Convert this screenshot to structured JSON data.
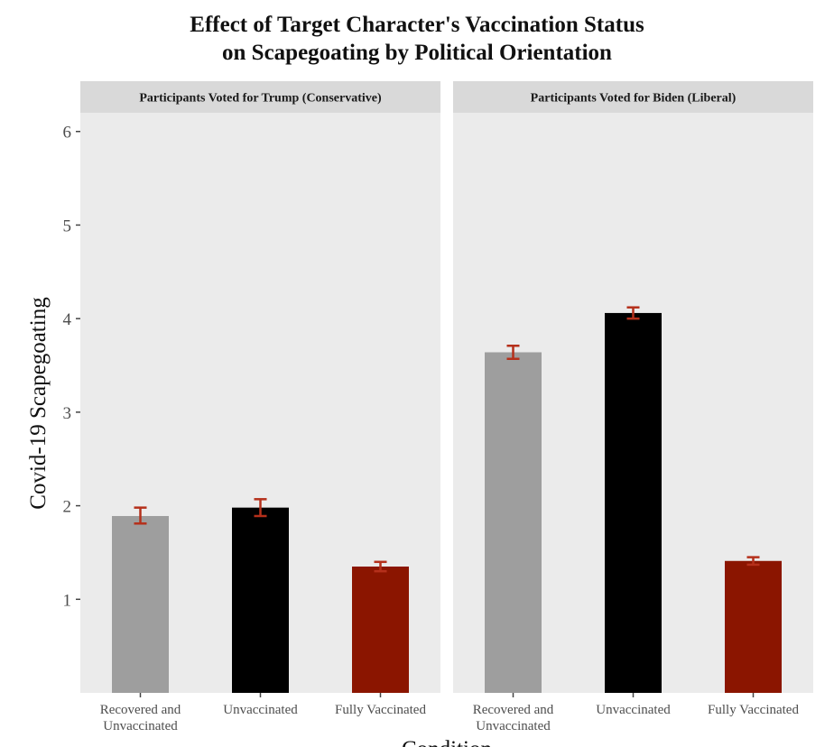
{
  "chart_data": {
    "type": "bar",
    "title_lines": [
      "Effect of Target Character's Vaccination Status",
      "on Scapegoating by Political Orientation"
    ],
    "xlabel": "Condition",
    "ylabel": "Covid-19 Scapegoating",
    "ylim": [
      0,
      6.2
    ],
    "yticks": [
      1,
      2,
      3,
      4,
      5,
      6
    ],
    "grid": false,
    "legend": "none",
    "categories": [
      [
        "Recovered and",
        "Unvaccinated"
      ],
      [
        "Unvaccinated"
      ],
      [
        "Fully Vaccinated"
      ]
    ],
    "colors": {
      "Recovered and Unvaccinated": "#9e9e9e",
      "Unvaccinated": "#000000",
      "Fully Vaccinated": "#8b1500",
      "error_bar": "#b5301b",
      "panel_background": "#ebebeb",
      "strip_background": "#d9d9d9"
    },
    "panels": [
      {
        "strip": "Participants Voted for Trump (Conservative)",
        "values": [
          1.89,
          1.98,
          1.35
        ],
        "error_low": [
          1.81,
          1.89,
          1.3
        ],
        "error_high": [
          1.98,
          2.07,
          1.4
        ]
      },
      {
        "strip": "Participants Voted for Biden (Liberal)",
        "values": [
          3.64,
          4.06,
          1.41
        ],
        "error_low": [
          3.57,
          4.0,
          1.37
        ],
        "error_high": [
          3.71,
          4.12,
          1.45
        ]
      }
    ]
  }
}
